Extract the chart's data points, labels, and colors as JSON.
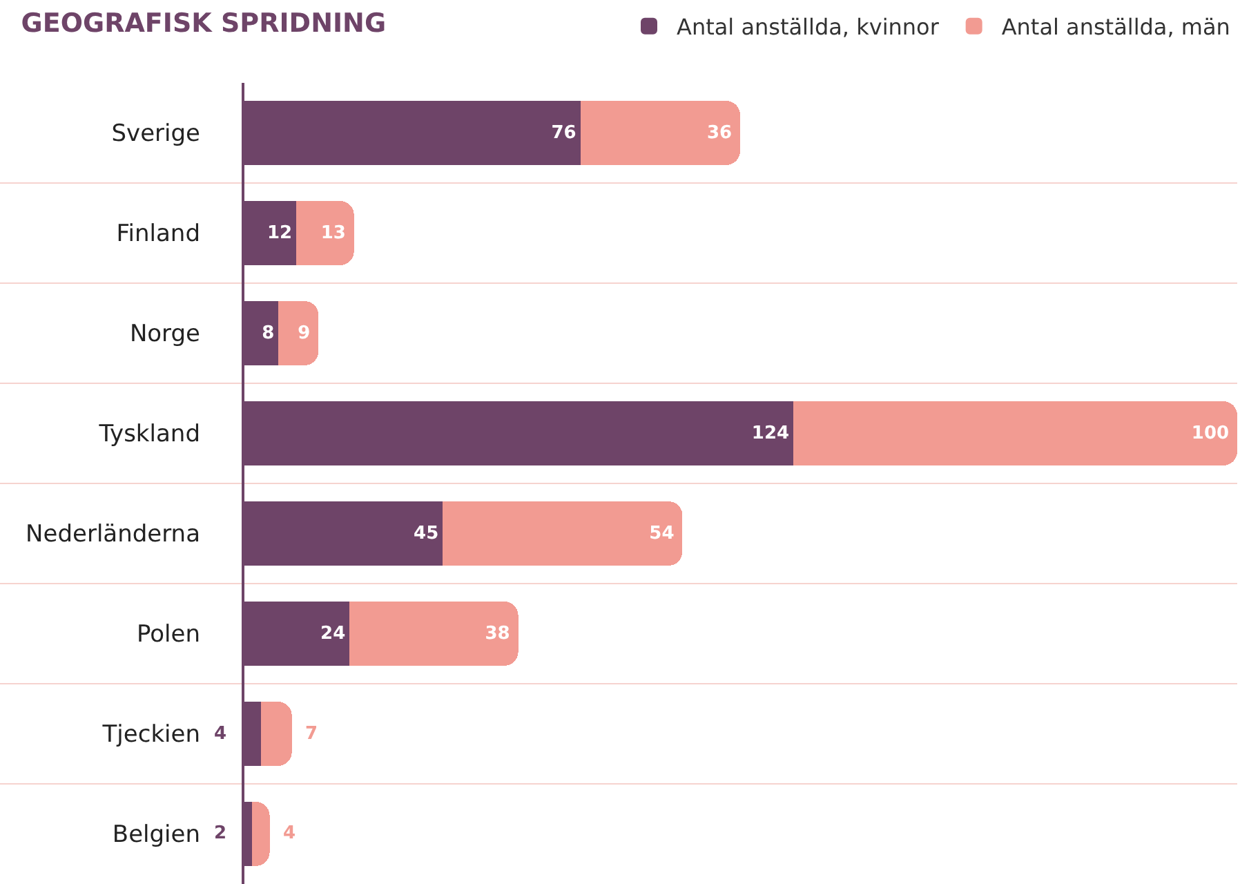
{
  "chart_data": {
    "type": "bar",
    "orientation": "horizontal",
    "stacked": true,
    "title": "GEOGRAFISK SPRIDNING",
    "categories": [
      "Sverige",
      "Finland",
      "Norge",
      "Tyskland",
      "Nederländerna",
      "Polen",
      "Tjeckien",
      "Belgien"
    ],
    "series": [
      {
        "name": "Antal anställda, kvinnor",
        "color": "#6e4468",
        "values": [
          76,
          12,
          8,
          124,
          45,
          24,
          4,
          2
        ]
      },
      {
        "name": "Antal anställda, män",
        "color": "#f29b92",
        "values": [
          36,
          13,
          9,
          100,
          54,
          38,
          7,
          4
        ]
      }
    ],
    "data_labels": true,
    "grid": "y",
    "legend": "top right"
  }
}
